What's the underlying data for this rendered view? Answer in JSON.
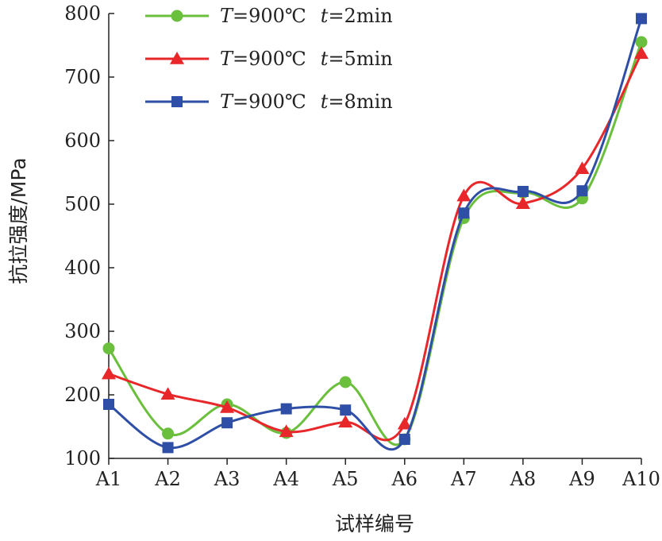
{
  "chart_data": {
    "type": "line",
    "title": "",
    "xlabel": "试样编号",
    "ylabel": "抗拉强度/MPa",
    "categories": [
      "A1",
      "A2",
      "A3",
      "A4",
      "A5",
      "A6",
      "A7",
      "A8",
      "A9",
      "A10"
    ],
    "ylim": [
      100,
      800
    ],
    "yticks": [
      "100",
      "200",
      "300",
      "400",
      "500",
      "600",
      "700",
      "800"
    ],
    "legend_position": "top-center",
    "grid": false,
    "series": [
      {
        "name": "T=900℃ t=2min",
        "legend": {
          "T": "T",
          "temp": "=900℃",
          "t": "t",
          "time": "=2min"
        },
        "color": "#6abf3c",
        "marker": "circle",
        "values": [
          273,
          139,
          185,
          140,
          220,
          130,
          478,
          518,
          509,
          755
        ]
      },
      {
        "name": "T=900℃ t=5min",
        "legend": {
          "T": "T",
          "temp": "=900℃",
          "t": "t",
          "time": "=5min"
        },
        "color": "#e8272b",
        "marker": "triangle",
        "values": [
          233,
          201,
          180,
          142,
          157,
          154,
          513,
          501,
          556,
          737
        ]
      },
      {
        "name": "T=900℃ t=8min",
        "legend": {
          "T": "T",
          "temp": "=900℃",
          "t": "t",
          "time": "=8min"
        },
        "color": "#2e4fa5",
        "marker": "square",
        "values": [
          185,
          117,
          156,
          178,
          176,
          130,
          486,
          520,
          521,
          792
        ]
      }
    ]
  }
}
